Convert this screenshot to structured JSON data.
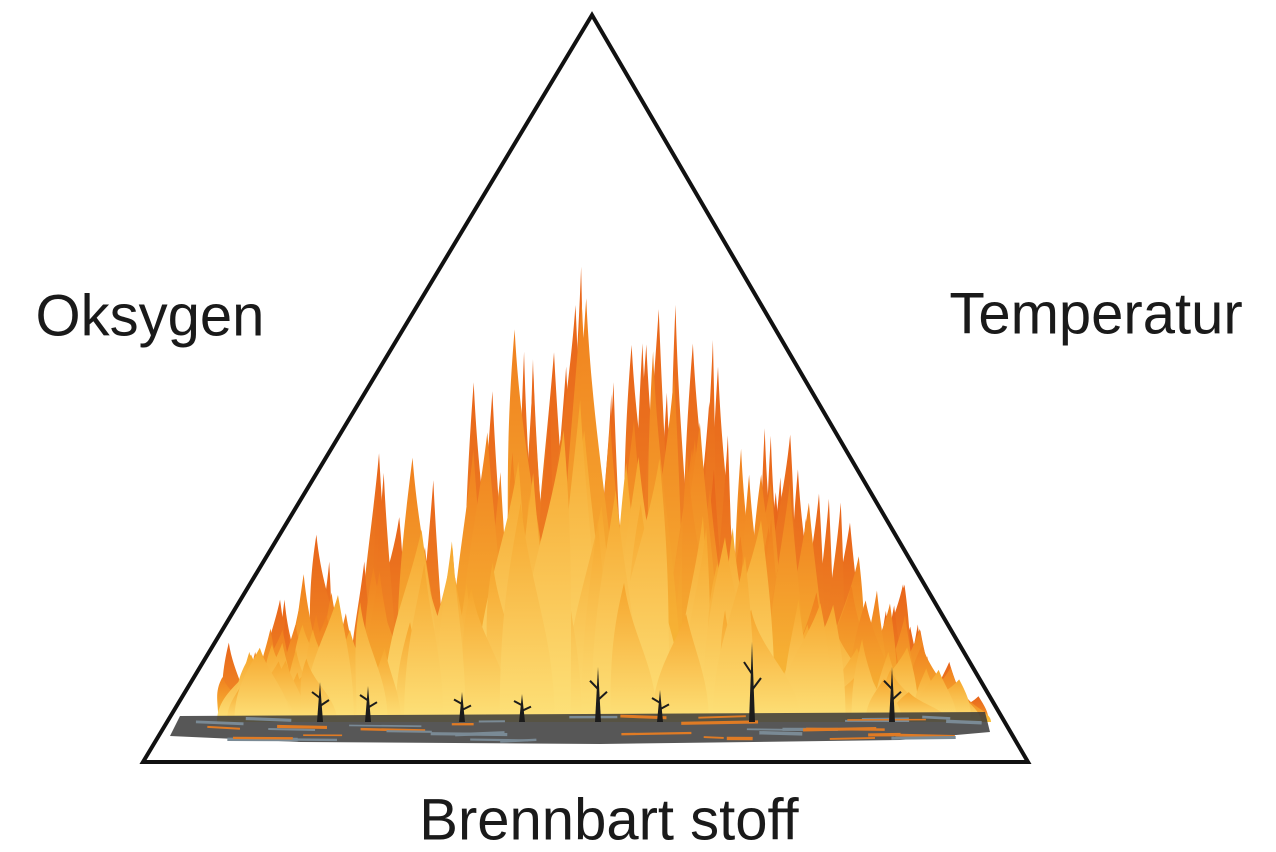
{
  "labels": {
    "left": "Oksygen",
    "right": "Temperatur",
    "bottom": "Brennbart stoff"
  }
}
